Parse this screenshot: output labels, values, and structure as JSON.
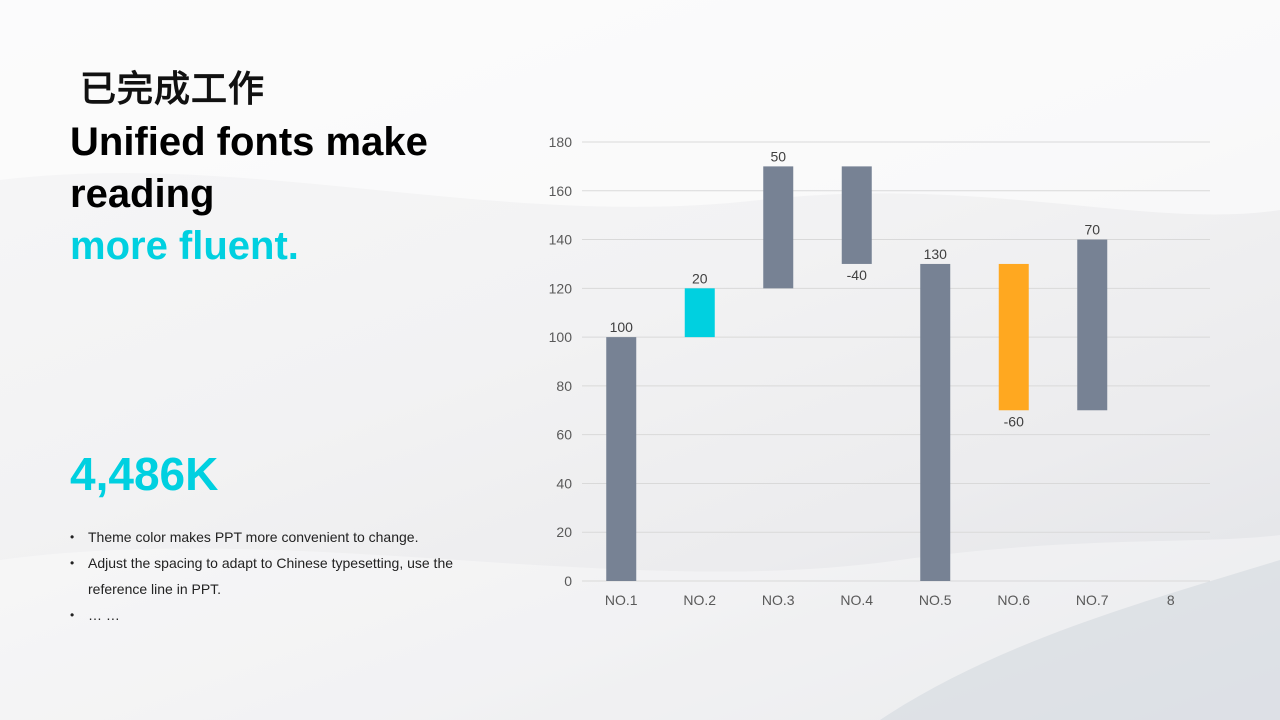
{
  "slide": {
    "title_cn": "已完成工作",
    "headline_line1": "Unified fonts make",
    "headline_line2": "reading",
    "headline_accent": "more fluent.",
    "big_number": "4,486K",
    "bullets": [
      "Theme  color makes PPT more convenient to change.",
      "Adjust the spacing to adapt to Chinese typesetting, use the reference line in PPT.",
      "… …"
    ],
    "accent_color": "#00d0e0"
  },
  "chart_data": {
    "type": "bar",
    "subtype": "waterfall",
    "categories": [
      "NO.1",
      "NO.2",
      "NO.3",
      "NO.4",
      "NO.5",
      "NO.6",
      "NO.7",
      "8"
    ],
    "bars": [
      {
        "category": "NO.1",
        "base": 0,
        "top": 100,
        "label": "100",
        "color": "#778294"
      },
      {
        "category": "NO.2",
        "base": 100,
        "top": 120,
        "label": "20",
        "color": "#00d0e0"
      },
      {
        "category": "NO.3",
        "base": 120,
        "top": 170,
        "label": "50",
        "color": "#778294"
      },
      {
        "category": "NO.4",
        "base": 130,
        "top": 170,
        "label": "-40",
        "color": "#778294"
      },
      {
        "category": "NO.5",
        "base": 0,
        "top": 130,
        "label": "130",
        "color": "#778294"
      },
      {
        "category": "NO.6",
        "base": 70,
        "top": 130,
        "label": "-60",
        "color": "#ffa820"
      },
      {
        "category": "NO.7",
        "base": 70,
        "top": 140,
        "label": "70",
        "color": "#778294"
      }
    ],
    "ylim": [
      0,
      180
    ],
    "yticks": [
      0,
      20,
      40,
      60,
      80,
      100,
      120,
      140,
      160,
      180
    ],
    "grid": true,
    "title": "",
    "xlabel": "",
    "ylabel": ""
  }
}
